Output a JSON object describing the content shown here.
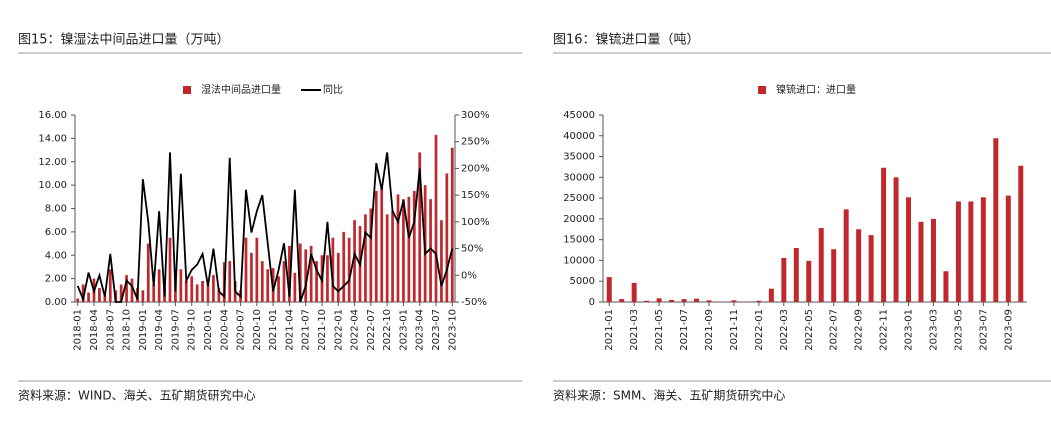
{
  "chart_data": [
    {
      "type": "bar",
      "title": "图15：镍湿法中间品进口量（万吨）",
      "source": "资料来源：WIND、海关、五矿期货研究中心",
      "categories": [
        "2018-01",
        null,
        null,
        "2018-04",
        null,
        null,
        "2018-07",
        null,
        null,
        "2018-10",
        null,
        null,
        "2019-01",
        null,
        null,
        "2019-04",
        null,
        null,
        "2019-07",
        null,
        null,
        "2019-10",
        null,
        null,
        "2020-01",
        null,
        null,
        "2020-04",
        null,
        null,
        "2020-07",
        null,
        null,
        "2020-10",
        null,
        null,
        "2021-01",
        null,
        null,
        "2021-04",
        null,
        null,
        "2021-07",
        null,
        null,
        "2021-10",
        null,
        null,
        "2022-01",
        null,
        null,
        "2022-04",
        null,
        null,
        "2022-07",
        null,
        null,
        "2022-10",
        null,
        null,
        "2023-01",
        null,
        null,
        "2023-04",
        null,
        null,
        "2023-07",
        null,
        null,
        "2023-10"
      ],
      "series": [
        {
          "name": "湿法中间品进口量",
          "type": "bar",
          "color": "#c0282e",
          "values": [
            0.3,
            1.5,
            0.8,
            2.0,
            1.2,
            0.5,
            2.8,
            1.0,
            1.5,
            2.3,
            2.0,
            1.2,
            1.0,
            5.0,
            1.5,
            2.8,
            1.2,
            5.5,
            1.8,
            2.8,
            1.8,
            2.2,
            1.5,
            1.8,
            1.5,
            2.3,
            1.2,
            3.4,
            3.5,
            1.8,
            1.0,
            5.5,
            4.2,
            5.5,
            3.5,
            2.8,
            2.9,
            2.2,
            3.5,
            4.8,
            2.5,
            5.0,
            4.5,
            4.8,
            3.5,
            4.0,
            4.0,
            5.5,
            4.2,
            6.0,
            5.5,
            7.0,
            6.5,
            7.5,
            8.0,
            9.5,
            9.8,
            7.5,
            7.8,
            9.2,
            8.8,
            9.0,
            9.5,
            12.8,
            10.0,
            8.8,
            14.3,
            7.0,
            11.0,
            13.2
          ]
        },
        {
          "name": "同比",
          "type": "line",
          "axis": "y2",
          "color": "#000000",
          "values": [
            -20,
            -45,
            5,
            -30,
            0,
            -40,
            40,
            -50,
            -50,
            -10,
            -20,
            -45,
            180,
            100,
            -20,
            120,
            -40,
            230,
            -30,
            190,
            -10,
            10,
            20,
            40,
            -20,
            50,
            -30,
            -40,
            220,
            -30,
            -40,
            160,
            80,
            120,
            150,
            60,
            -30,
            10,
            60,
            -40,
            160,
            -50,
            -20,
            40,
            10,
            -10,
            100,
            -20,
            -30,
            -20,
            -10,
            40,
            20,
            80,
            70,
            210,
            160,
            230,
            120,
            100,
            140,
            70,
            100,
            200,
            40,
            50,
            40,
            -20,
            10,
            50
          ]
        }
      ],
      "ylim": [
        0,
        16
      ],
      "yticks": [
        {
          "value": 0,
          "label": "0.00"
        },
        {
          "value": 2,
          "label": "2.00"
        },
        {
          "value": 4,
          "label": "4.00"
        },
        {
          "value": 6,
          "label": "6.00"
        },
        {
          "value": 8,
          "label": "8.00"
        },
        {
          "value": 10,
          "label": "10.00"
        },
        {
          "value": 12,
          "label": "12.00"
        },
        {
          "value": 14,
          "label": "14.00"
        },
        {
          "value": 16,
          "label": "16.00"
        }
      ],
      "y2lim": [
        -50,
        300
      ],
      "y2ticks": [
        {
          "value": -50,
          "label": "-50%"
        },
        {
          "value": 0,
          "label": "0%"
        },
        {
          "value": 50,
          "label": "50%"
        },
        {
          "value": 100,
          "label": "100%"
        },
        {
          "value": 150,
          "label": "150%"
        },
        {
          "value": 200,
          "label": "200%"
        },
        {
          "value": 250,
          "label": "250%"
        },
        {
          "value": 300,
          "label": "300%"
        }
      ]
    },
    {
      "type": "bar",
      "title": "图16：镍锍进口量（吨）",
      "source": "资料来源：SMM、海关、五矿期货研究中心",
      "categories": [
        "2021-01",
        null,
        "2021-03",
        null,
        "2021-05",
        null,
        "2021-07",
        null,
        "2021-09",
        null,
        "2021-11",
        null,
        "2022-01",
        null,
        "2022-03",
        null,
        "2022-05",
        null,
        "2022-07",
        null,
        "2022-09",
        null,
        "2022-11",
        null,
        "2023-01",
        null,
        "2023-03",
        null,
        "2023-05",
        null,
        "2023-07",
        null,
        "2023-09",
        null
      ],
      "series": [
        {
          "name": "镍锍进口：进口量",
          "type": "bar",
          "color": "#c0282e",
          "values": [
            6000,
            700,
            4600,
            300,
            900,
            500,
            700,
            800,
            400,
            100,
            400,
            100,
            300,
            3200,
            10600,
            13000,
            9900,
            17800,
            12700,
            22300,
            17500,
            16100,
            32300,
            30000,
            25200,
            19300,
            20000,
            7400,
            24200,
            24200,
            25200,
            39400,
            25600,
            32800
          ]
        }
      ],
      "ylim": [
        0,
        45000
      ],
      "yticks": [
        0,
        5000,
        10000,
        15000,
        20000,
        25000,
        30000,
        35000,
        40000,
        45000
      ]
    }
  ]
}
